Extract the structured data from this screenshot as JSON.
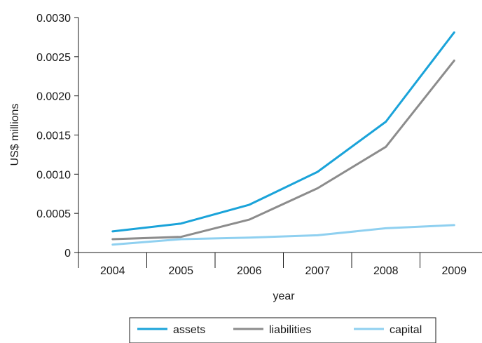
{
  "chart_data": {
    "type": "line",
    "title": "",
    "xlabel": "year",
    "ylabel": "US$ millions",
    "categories": [
      "2004",
      "2005",
      "2006",
      "2007",
      "2008",
      "2009"
    ],
    "ylim": [
      0,
      0.003
    ],
    "y_ticks": [
      "0",
      "0.0005",
      "0.0010",
      "0.0015",
      "0.0020",
      "0.0025",
      "0.0030"
    ],
    "grid": false,
    "legend_position": "bottom",
    "series": [
      {
        "name": "assets",
        "color": "#1aa3d9",
        "values": [
          0.00027,
          0.00037,
          0.00061,
          0.00103,
          0.00167,
          0.00281
        ]
      },
      {
        "name": "liabilities",
        "color": "#8c8c8c",
        "values": [
          0.00017,
          0.0002,
          0.00042,
          0.00082,
          0.00135,
          0.00245
        ]
      },
      {
        "name": "capital",
        "color": "#8fd0f0",
        "values": [
          0.0001,
          0.00017,
          0.00019,
          0.00022,
          0.00031,
          0.00035
        ]
      }
    ]
  }
}
